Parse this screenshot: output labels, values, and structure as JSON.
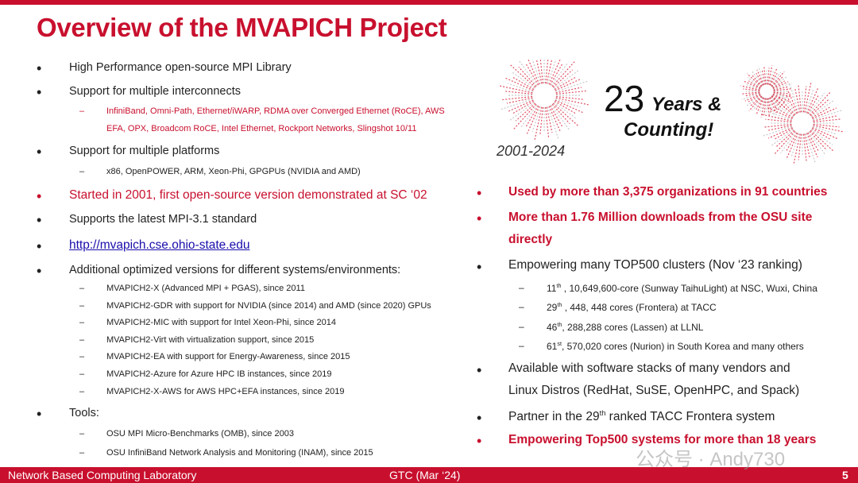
{
  "title": "Overview of the MVAPICH Project",
  "left": {
    "b1": "High Performance open-source MPI Library",
    "b2": "Support for multiple interconnects",
    "b2_sub1": "InfiniBand, Omni-Path, Ethernet/iWARP, RDMA over Converged Ethernet (RoCE),  AWS",
    "b2_sub2": "EFA, OPX, Broadcom RoCE, Intel Ethernet, Rockport Networks, Slingshot 10/11",
    "b3": "Support for multiple platforms",
    "b3_sub": "x86, OpenPOWER, ARM, Xeon-Phi, GPGPUs (NVIDIA and AMD)",
    "b4": "Started in 2001, first open-source version demonstrated at SC ‘02",
    "b5": "Supports the latest MPI-3.1 standard",
    "b6": "http://mvapich.cse.ohio-state.edu",
    "b7": "Additional optimized versions for different systems/environments:",
    "b7_subs": [
      "MVAPICH2-X (Advanced MPI + PGAS), since 2011",
      "MVAPICH2-GDR with support for NVIDIA (since 2014) and AMD (since 2020) GPUs",
      "MVAPICH2-MIC with support for Intel Xeon-Phi, since 2014",
      "MVAPICH2-Virt with virtualization support, since 2015",
      "MVAPICH2-EA with support for Energy-Awareness, since 2015",
      "MVAPICH2-Azure for Azure HPC IB instances, since 2019",
      "MVAPICH2-X-AWS for AWS HPC+EFA instances, since 2019"
    ],
    "b8": "Tools:",
    "b8_subs": [
      "OSU MPI Micro-Benchmarks (OMB), since 2003",
      "OSU InfiniBand Network Analysis and Monitoring (INAM), since 2015"
    ]
  },
  "banner": {
    "big": "23",
    "years": "Years &",
    "counting": "Counting!",
    "range": "2001-2024"
  },
  "right": {
    "r1": "Used by more than 3,375 organizations in 91 countries",
    "r2a": "More than 1.76 Million downloads from the OSU site",
    "r2b": "directly",
    "r3": "Empowering many TOP500 clusters (Nov ‘23 ranking)",
    "subs": [
      {
        "pre": "11",
        "sup": "th",
        "post": " , 10,649,600-core (Sunway TaihuLight) at NSC, Wuxi, China"
      },
      {
        "pre": "29",
        "sup": "th",
        "post": " , 448, 448 cores (Frontera) at TACC"
      },
      {
        "pre": "46",
        "sup": "th",
        "post": ", 288,288 cores (Lassen) at LLNL"
      },
      {
        "pre": "61",
        "sup": "st",
        "post": ", 570,020 cores (Nurion) in South Korea and many others"
      }
    ],
    "r4a": "Available with software stacks of many vendors and",
    "r4b": "Linux Distros (RedHat, SuSE, OpenHPC, and Spack)",
    "r5pre": "Partner in the 29",
    "r5sup": "th",
    "r5post": " ranked TACC Frontera system",
    "r6": "Empowering Top500 systems for more than 18 years"
  },
  "bullet": "•",
  "dash": "–",
  "watermark": "公众号 · Andy730",
  "footer": {
    "lab": "Network Based Computing Laboratory",
    "event": "GTC (Mar ‘24)",
    "page": "5"
  },
  "colors": {
    "accent": "#c8102e",
    "link": "#1a0dab"
  }
}
